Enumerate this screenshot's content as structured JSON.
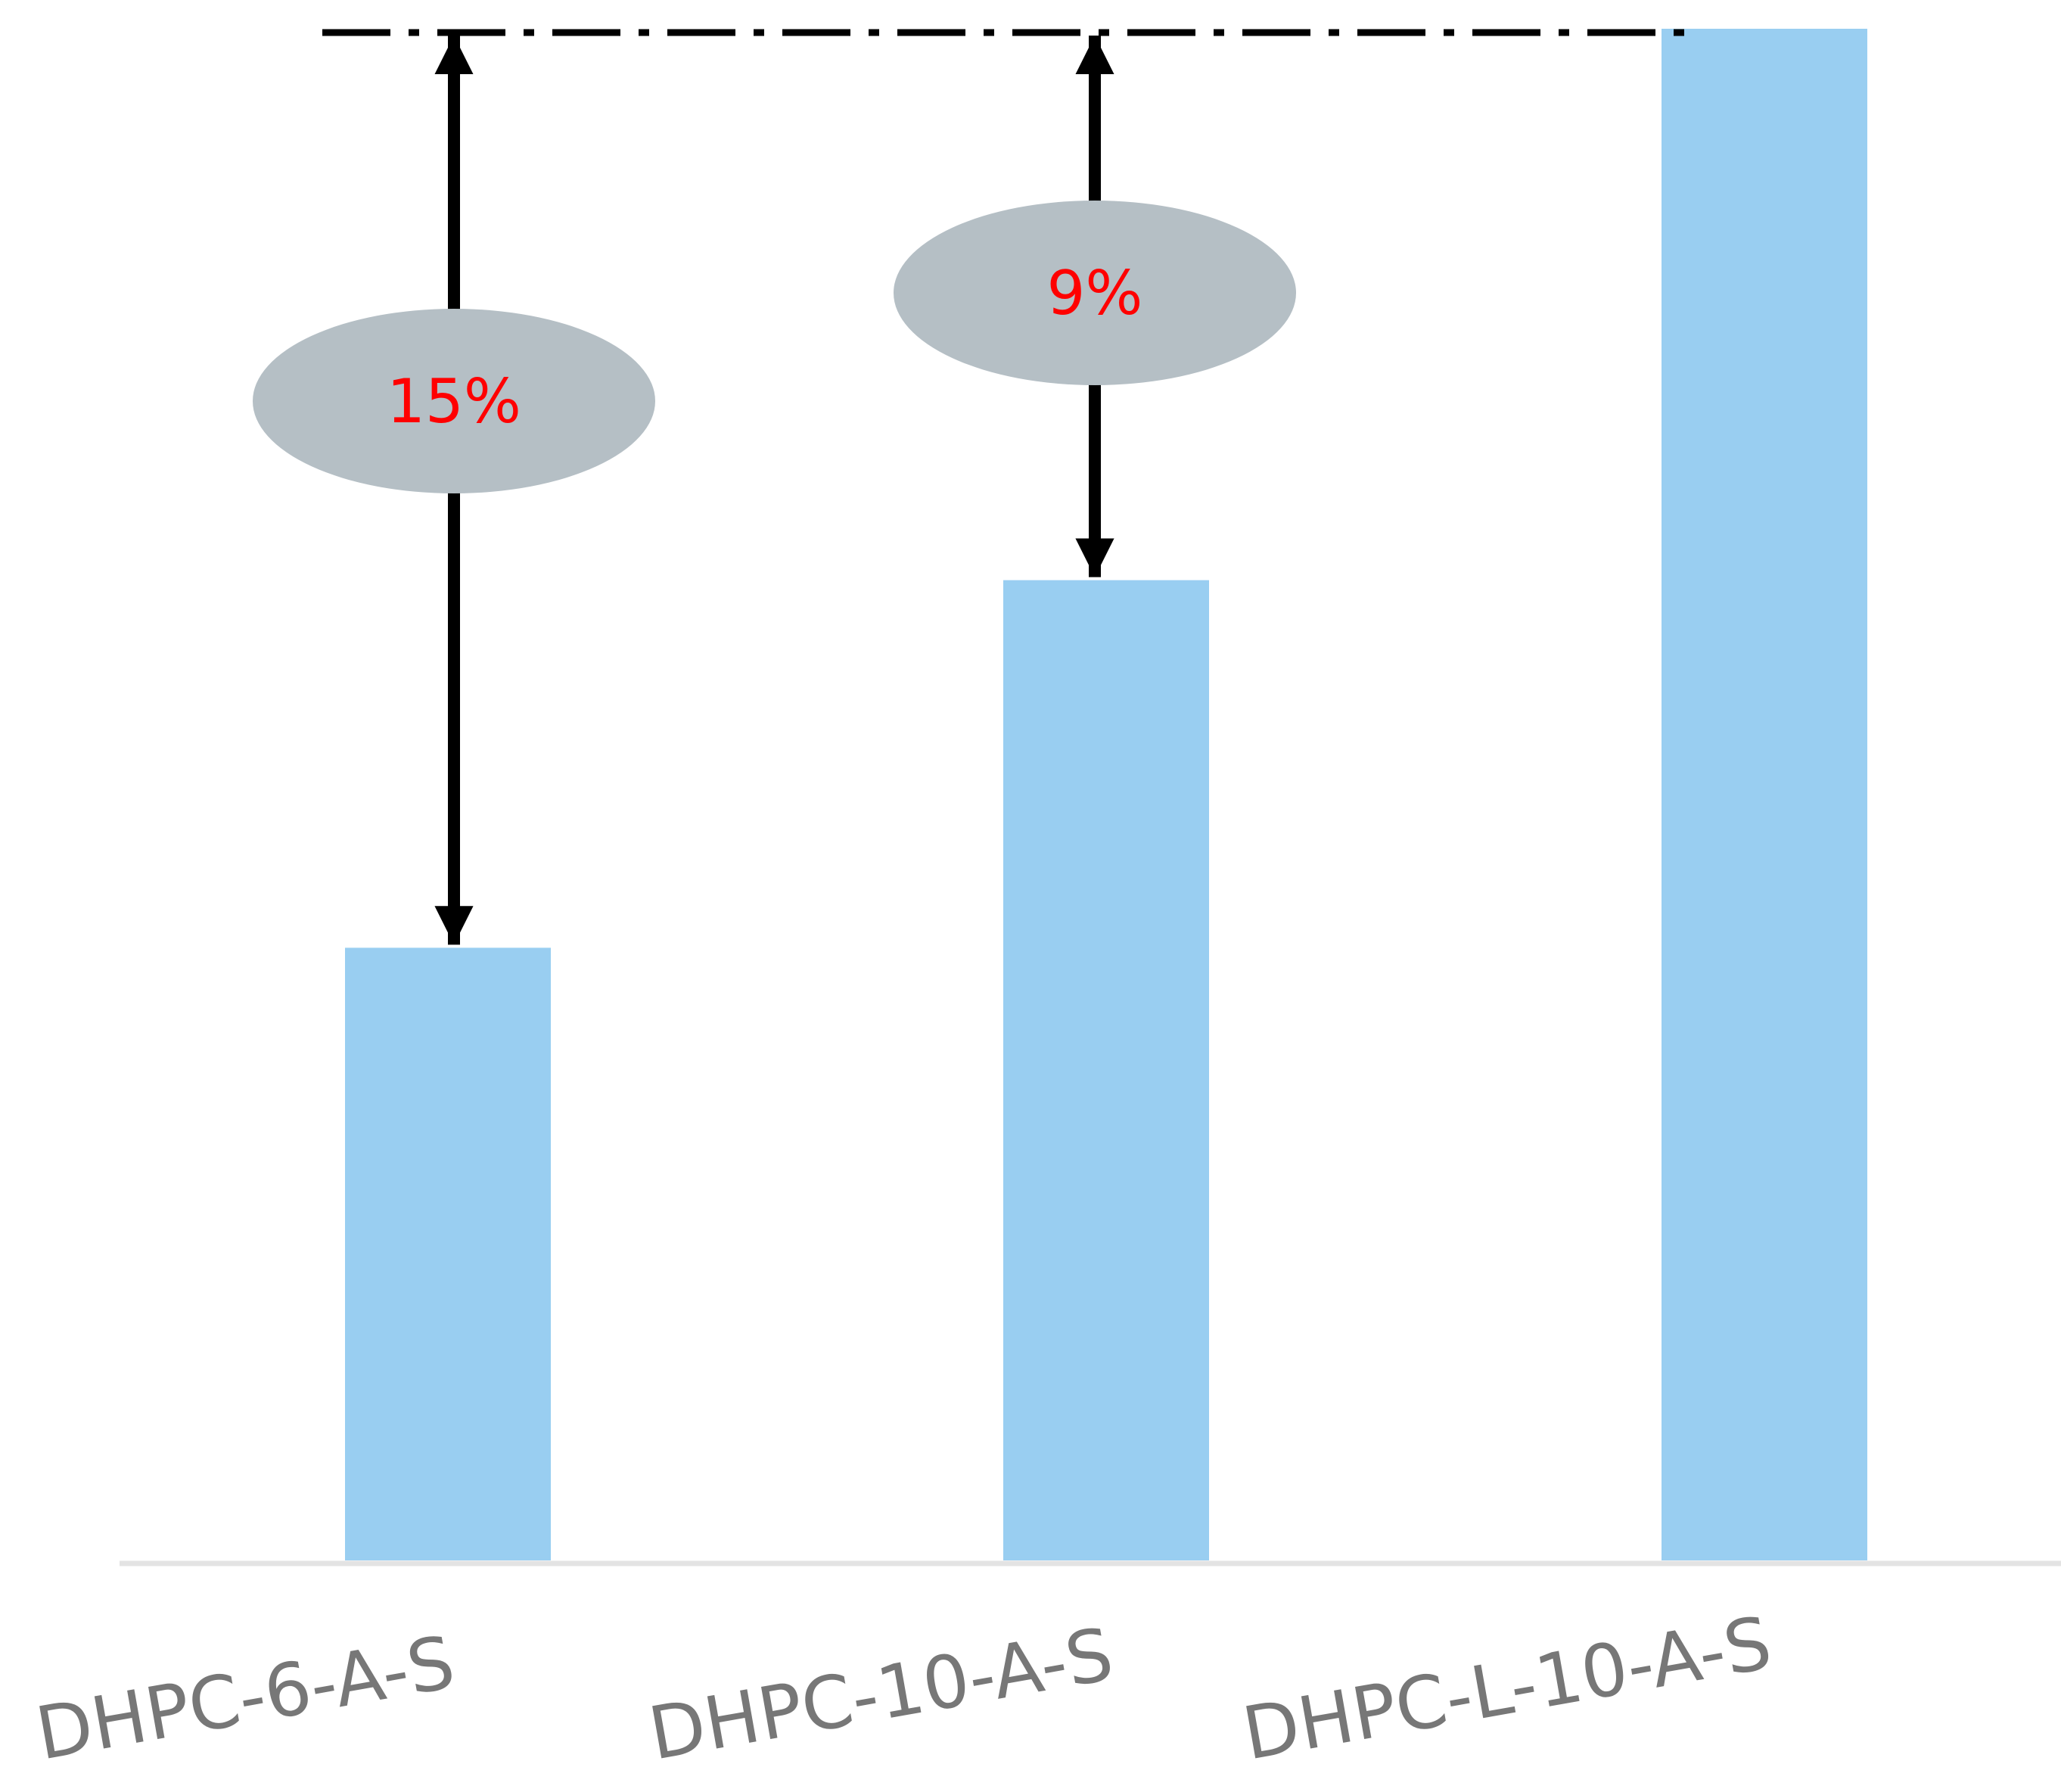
{
  "chart_data": {
    "type": "bar",
    "title": "",
    "xlabel": "",
    "ylabel": "",
    "categories": [
      "DHPC-6-A-S",
      "DHPC-10-A-S",
      "DHPC-L-10-A-S"
    ],
    "values": [
      40,
      64,
      100
    ],
    "ylim": [
      0,
      100
    ],
    "grid": false,
    "reference_line": {
      "value": 100,
      "style": "dash-dot"
    },
    "annotations": [
      {
        "category": "DHPC-6-A-S",
        "text": "15%"
      },
      {
        "category": "DHPC-10-A-S",
        "text": "9%"
      }
    ],
    "colors": {
      "bar": "#99CEF1",
      "axis": "#E3E3E3",
      "reference_line": "#000000",
      "arrow": "#000000",
      "callout_fill": "#B5BFC5",
      "callout_text": "#FF0000",
      "category_text": "#777777"
    }
  }
}
